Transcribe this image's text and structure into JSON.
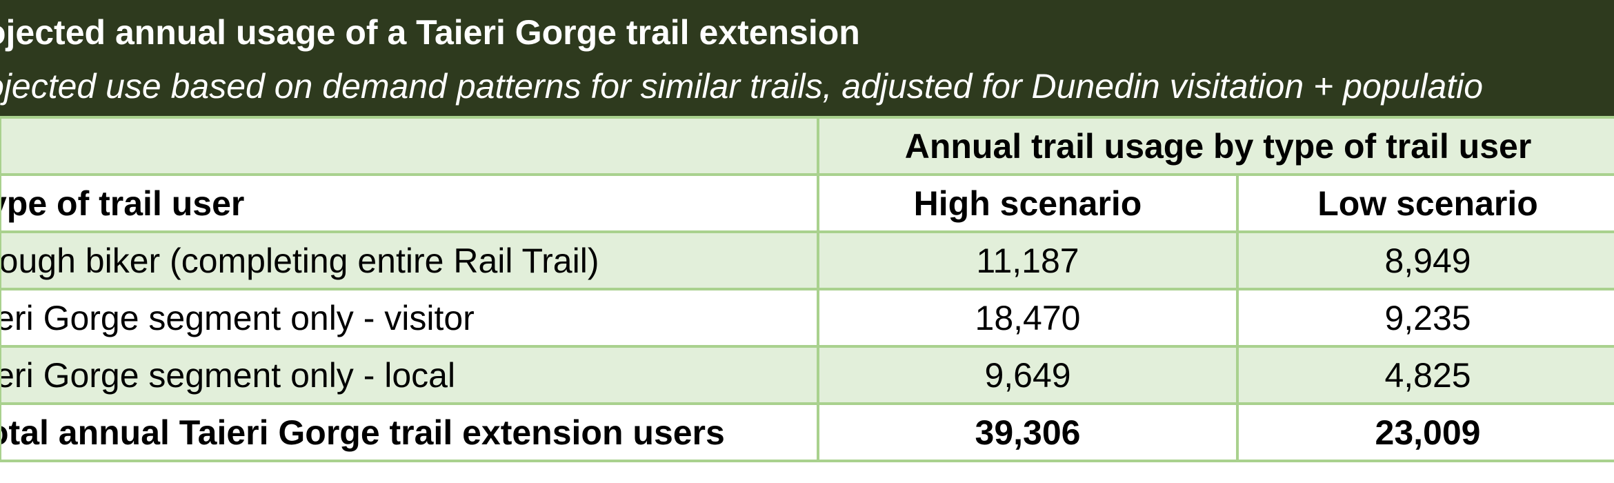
{
  "title": "ojected annual usage of a Taieri Gorge trail extension",
  "subtitle": "ojected use based on demand patterns for similar trails, adjusted for Dunedin visitation + populatio",
  "table": {
    "group_header": "Annual trail usage by type of trail user",
    "column_headers": {
      "type": "ype of trail user",
      "high": "High scenario",
      "low": "Low scenario"
    },
    "rows": [
      {
        "type": "rough biker (completing entire Rail Trail)",
        "high": "11,187",
        "low": "8,949"
      },
      {
        "type": "ieri Gorge segment only - visitor",
        "high": "18,470",
        "low": "9,235"
      },
      {
        "type": "ieri Gorge segment only - local",
        "high": "9,649",
        "low": "4,825"
      }
    ],
    "total": {
      "type": "otal annual Taieri Gorge trail extension users",
      "high": "39,306",
      "low": "23,009"
    }
  },
  "colors": {
    "header_bg": "#2e3a1e",
    "row_shade": "#e2efda",
    "grid_line": "#a9d18e"
  }
}
